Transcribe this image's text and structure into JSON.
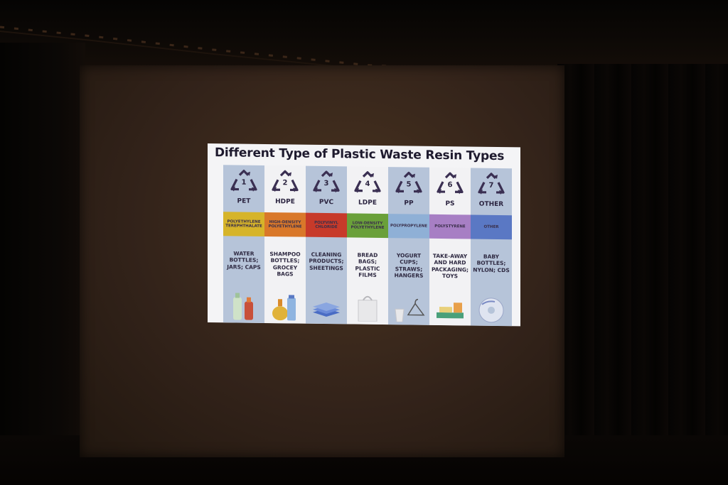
{
  "slide": {
    "title": "Different Type of Plastic Waste Resin Types"
  },
  "resins": [
    {
      "number": "1",
      "code": "PET",
      "name": "POLYETHYLENE TEREPHTHALATE",
      "uses": "WATER BOTTLES; JARS; CAPS",
      "band_color": "#d6b42a",
      "icon": "bottles-icon"
    },
    {
      "number": "2",
      "code": "HDPE",
      "name": "HIGH-DENSITY POLYETHYLENE",
      "uses": "SHAMPOO BOTTLES; GROCEY BAGS",
      "band_color": "#d9782a",
      "icon": "shampoo-bottles-icon"
    },
    {
      "number": "3",
      "code": "PVC",
      "name": "POLYVINYL CHLORIDE",
      "uses": "CLEANING PRODUCTS; SHEETINGS",
      "band_color": "#c73a2a",
      "icon": "sheets-icon"
    },
    {
      "number": "4",
      "code": "LDPE",
      "name": "LOW-DENSITY POLYETHYLENE",
      "uses": "BREAD BAGS; PLASTIC FILMS",
      "band_color": "#6aa03a",
      "icon": "plastic-bag-icon"
    },
    {
      "number": "5",
      "code": "PP",
      "name": "POLYPROPYLENE",
      "uses": "YOGURT CUPS; STRAWS; HANGERS",
      "band_color": "#8fb0d6",
      "icon": "cup-hanger-icon"
    },
    {
      "number": "6",
      "code": "PS",
      "name": "POLYSTYRENE",
      "uses": "TAKE-AWAY AND HARD PACKAGING; TOYS",
      "band_color": "#a77fc4",
      "icon": "takeaway-box-icon"
    },
    {
      "number": "7",
      "code": "OTHER",
      "name": "OTHER",
      "uses": "BABY BOTTLES; NYLON; CDS",
      "band_color": "#5a78c4",
      "icon": "cd-icon"
    }
  ],
  "colors": {
    "slide_background": "#f4f4f6",
    "column_alt": "#b6c4d9",
    "column_plain": "#f2f2f4",
    "text_dark": "#1e1a2e",
    "screen": "#33231a"
  }
}
